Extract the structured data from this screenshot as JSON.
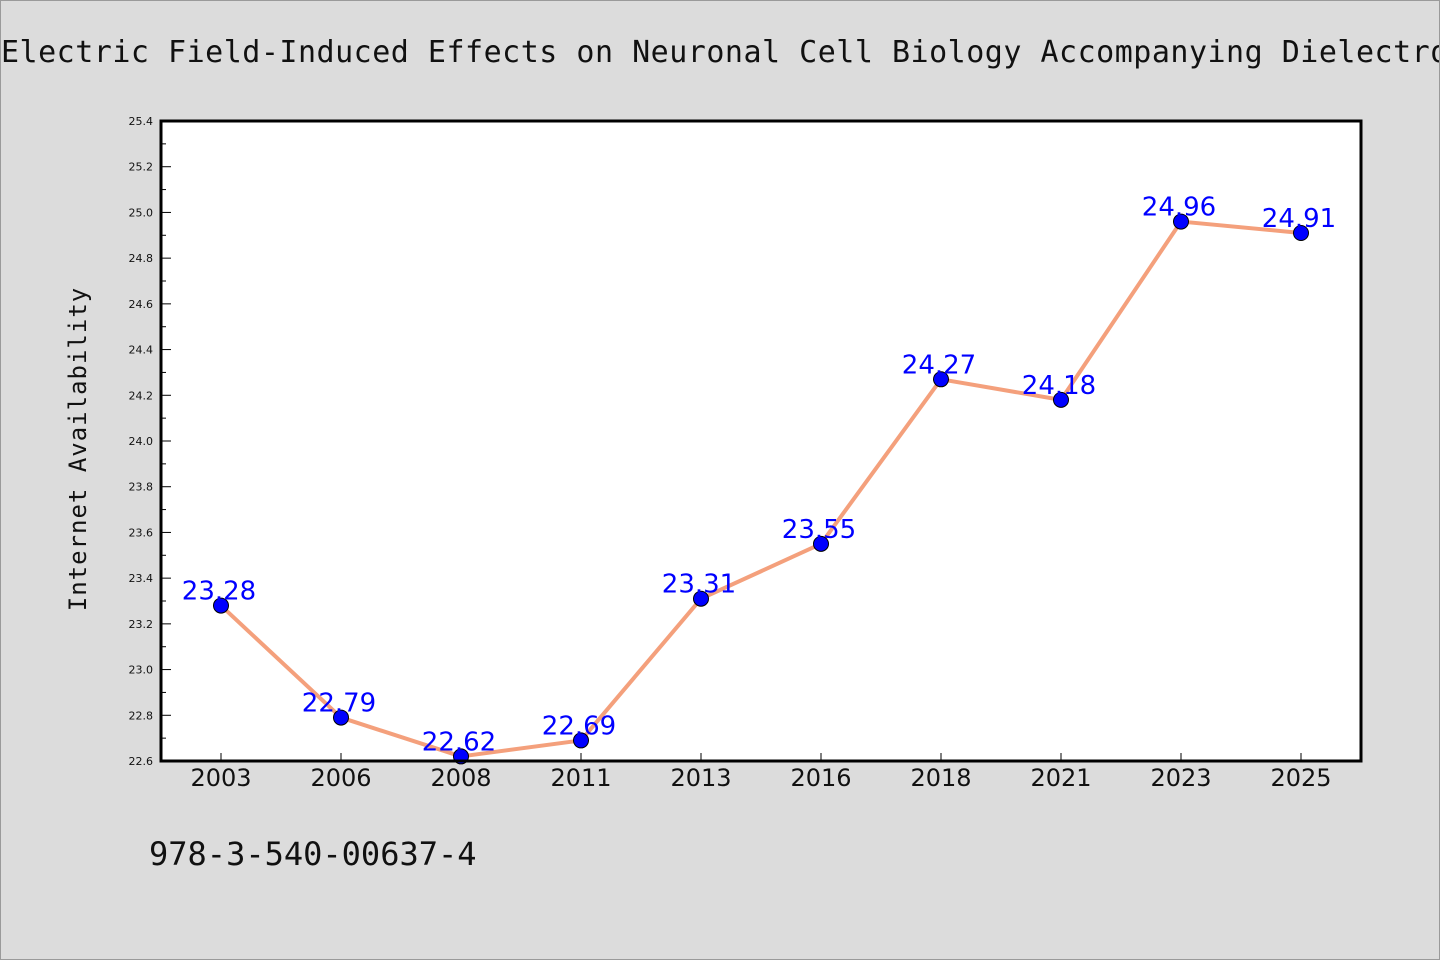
{
  "chart_data": {
    "type": "line",
    "title": "Electric Field-Induced Effects on Neuronal Cell Biology Accompanying Dielectrophoretic Trapping",
    "xlabel": "",
    "ylabel": "Internet Availability",
    "categories": [
      "2003",
      "2006",
      "2008",
      "2011",
      "2013",
      "2016",
      "2018",
      "2021",
      "2023",
      "2025"
    ],
    "series": [
      {
        "values": [
          23.28,
          22.79,
          22.62,
          22.69,
          23.31,
          23.55,
          24.27,
          24.18,
          24.96,
          24.91
        ]
      }
    ],
    "data_labels": [
      "23.28",
      "22.79",
      "22.62",
      "22.69",
      "23.31",
      "23.55",
      "24.27",
      "24.18",
      "24.96",
      "24.91"
    ],
    "ylim": [
      22.6,
      25.4
    ],
    "y_ticks": [
      "22.6",
      "22.8",
      "23.0",
      "23.2",
      "23.4",
      "23.6",
      "23.8",
      "24.0",
      "24.2",
      "24.4",
      "24.6",
      "24.8",
      "25.0",
      "25.2",
      "25.4"
    ],
    "grid": false,
    "legend": "none",
    "colors": {
      "line": "#f4a07c",
      "marker": "#0000ff",
      "label": "#0000ff",
      "background": "#dcdcdc",
      "plot_area": "#ffffff"
    }
  },
  "footer": {
    "isbn": "978-3-540-00637-4"
  }
}
